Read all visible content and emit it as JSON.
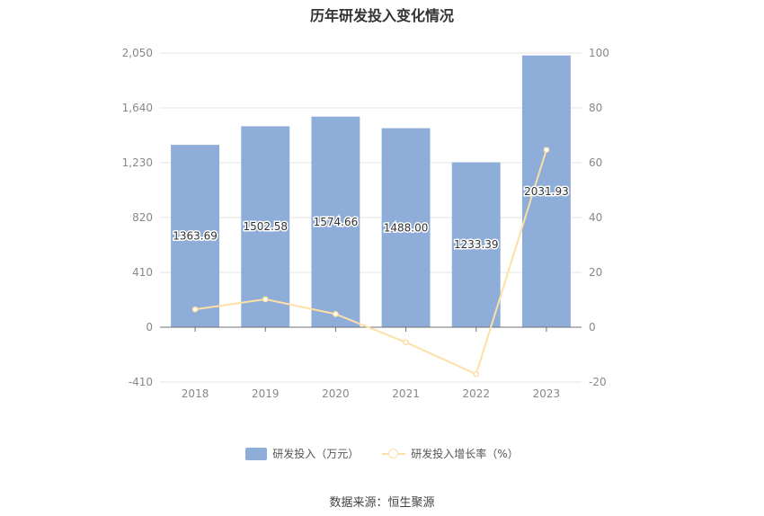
{
  "chart_data": {
    "type": "bar",
    "title": "历年研发投入变化情况",
    "categories": [
      "2018",
      "2019",
      "2020",
      "2021",
      "2022",
      "2023"
    ],
    "y_left": {
      "ticks": [
        "-410",
        "0",
        "410",
        "820",
        "1,230",
        "1,640",
        "2,050"
      ],
      "ylim": [
        -410,
        2050
      ]
    },
    "y_right": {
      "ticks": [
        "-20",
        "0",
        "20",
        "40",
        "60",
        "80",
        "100"
      ],
      "ylim": [
        -20,
        100
      ]
    },
    "series": [
      {
        "name": "研发投入（万元）",
        "type": "bar",
        "axis": "left",
        "color": "#8eadd9",
        "values": [
          1363.69,
          1502.58,
          1574.66,
          1488.0,
          1233.39,
          2031.93
        ],
        "labels": [
          "1363.69",
          "1502.58",
          "1574.66",
          "1488.00",
          "1233.39",
          "2031.93"
        ]
      },
      {
        "name": "研发投入增长率（%）",
        "type": "line",
        "axis": "right",
        "color": "#fde0a6",
        "values": [
          6.5,
          10.2,
          4.8,
          -5.5,
          -17.1,
          64.7
        ]
      }
    ],
    "grid": true,
    "legend_position": "bottom",
    "source": "数据来源：恒生聚源"
  }
}
